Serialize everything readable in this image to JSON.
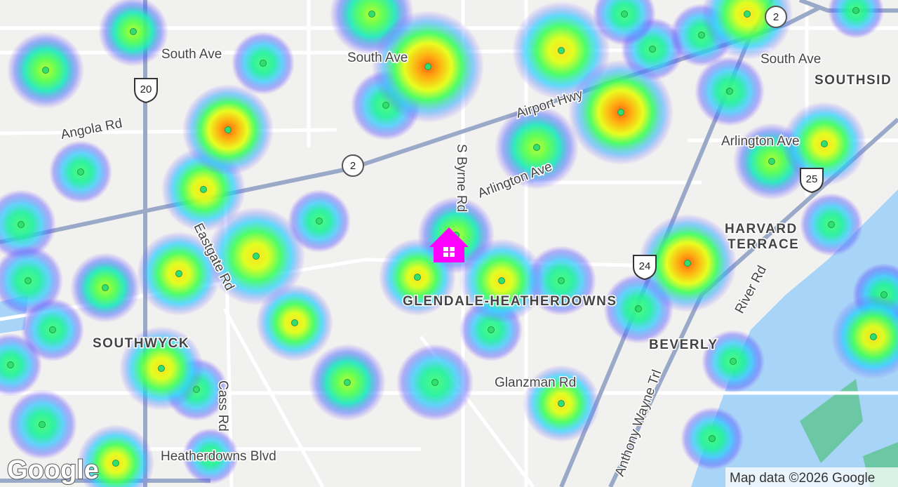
{
  "map": {
    "roads": [
      "South Ave",
      "South Ave",
      "South Ave",
      "Angola Rd",
      "Airport Hwy",
      "S Byrne Rd",
      "Arlington Ave",
      "Arlington Ave",
      "Eastgate Rd",
      "Glanzman Rd",
      "Cass Rd",
      "Heatherdowns Blvd",
      "Anthony Wayne Trl",
      "River Rd"
    ],
    "areas": [
      "SOUTHSID",
      "HARVARD",
      "TERRACE",
      "GLENDALE-HEATHERDOWNS",
      "SOUTHWYCK",
      "BEVERLY"
    ],
    "shields": [
      "2",
      "20",
      "2",
      "24",
      "25"
    ],
    "logo": "Google",
    "attribution": "Map data ©2026 Google"
  }
}
